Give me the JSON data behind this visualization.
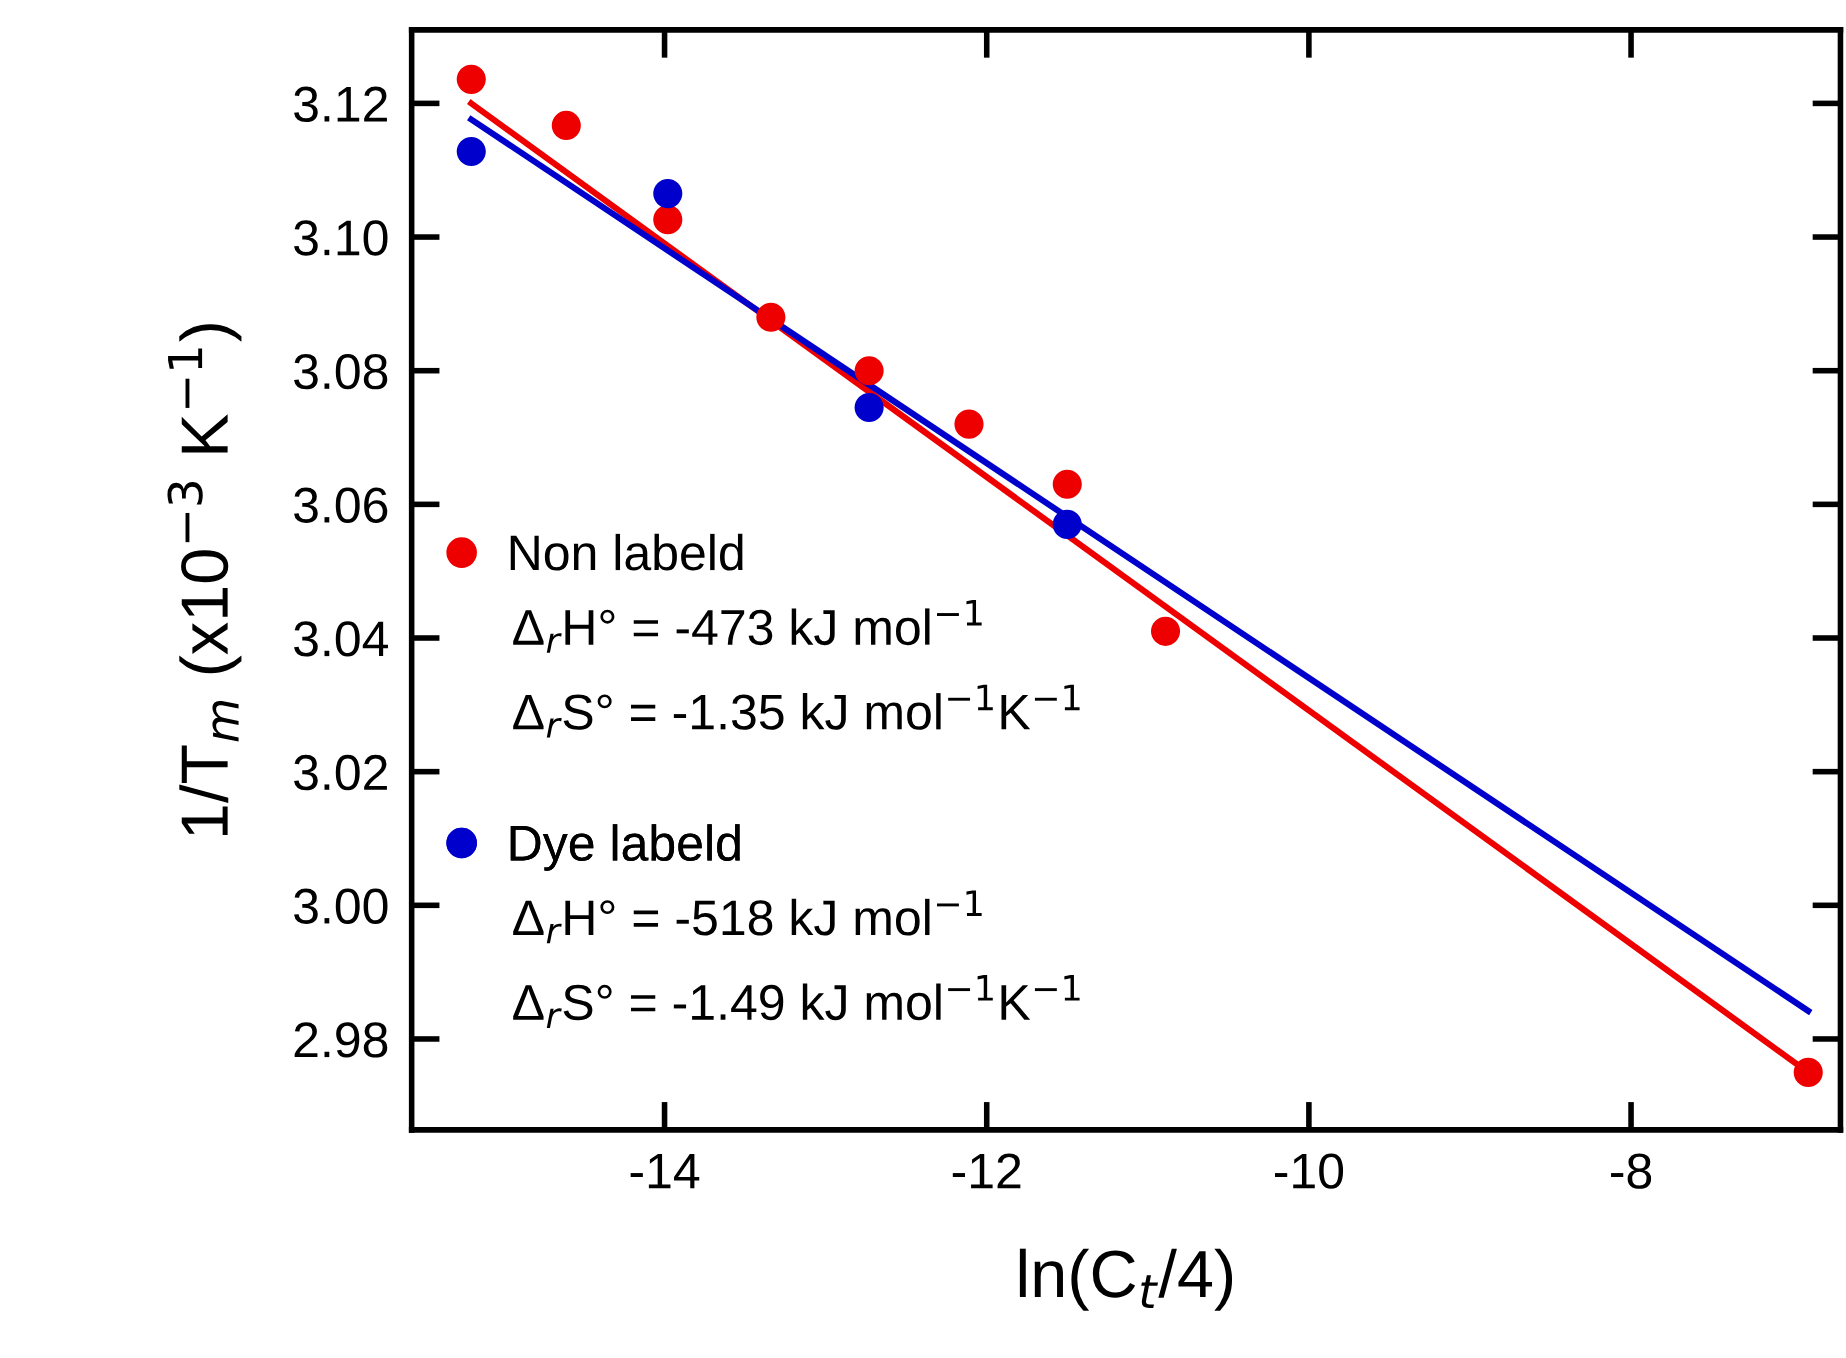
{
  "chart_data": {
    "type": "scatter",
    "xlabel": "ln(C$_{t}$/4)",
    "ylabel": "1/T$_{m}$ (x10$^{−3}$ K$^{−1}$)",
    "xlim": [
      -15.57,
      -6.7
    ],
    "xticks": [
      -14,
      -12,
      -10,
      -8
    ],
    "ylim": [
      2.9664,
      3.131
    ],
    "yticks": [
      2.98,
      {
        "value": 3.0,
        "label": "3.00"
      },
      3.02,
      3.04,
      3.06,
      3.08,
      {
        "value": 3.1,
        "label": "3.10"
      },
      3.12
    ],
    "grid": false,
    "legend": "left",
    "series": [
      {
        "name": "Non labeld",
        "color": "#ee0000",
        "marker": "circle",
        "x": [
          -15.2,
          -14.61,
          -13.98,
          -13.34,
          -12.73,
          -12.11,
          -11.5,
          -10.89,
          -6.9
        ],
        "values": [
          3.1236,
          3.1167,
          3.1026,
          3.088,
          3.08,
          3.072,
          3.063,
          3.041,
          2.975
        ]
      },
      {
        "name": "Dye labeld",
        "color": "#0000cc",
        "marker": "circle",
        "x": [
          -15.2,
          -13.98,
          -12.73,
          -11.5
        ],
        "values": [
          3.1128,
          3.1065,
          3.0745,
          3.057
        ]
      },
      {
        "type": "line",
        "color": "#ee0000",
        "x": [
          -15.2,
          -6.9
        ],
        "values": [
          3.12,
          2.975
        ]
      },
      {
        "type": "line",
        "color": "#0000cc",
        "x": [
          -15.2,
          -6.9
        ],
        "values": [
          3.1176,
          2.9842
        ]
      }
    ],
    "annotations": [
      "Δ$_{r}$H° = -473 kJ mol$^{−1}$",
      "Δ$_{r}$S° = -1.35 kJ mol$^{−1}$K$^{−1}$",
      "Δ$_{r}$H° = -518 kJ mol$^{−1}$",
      "Δ$_{r}$S° = -1.49 kJ mol$^{−1}$K$^{−1}$"
    ]
  }
}
